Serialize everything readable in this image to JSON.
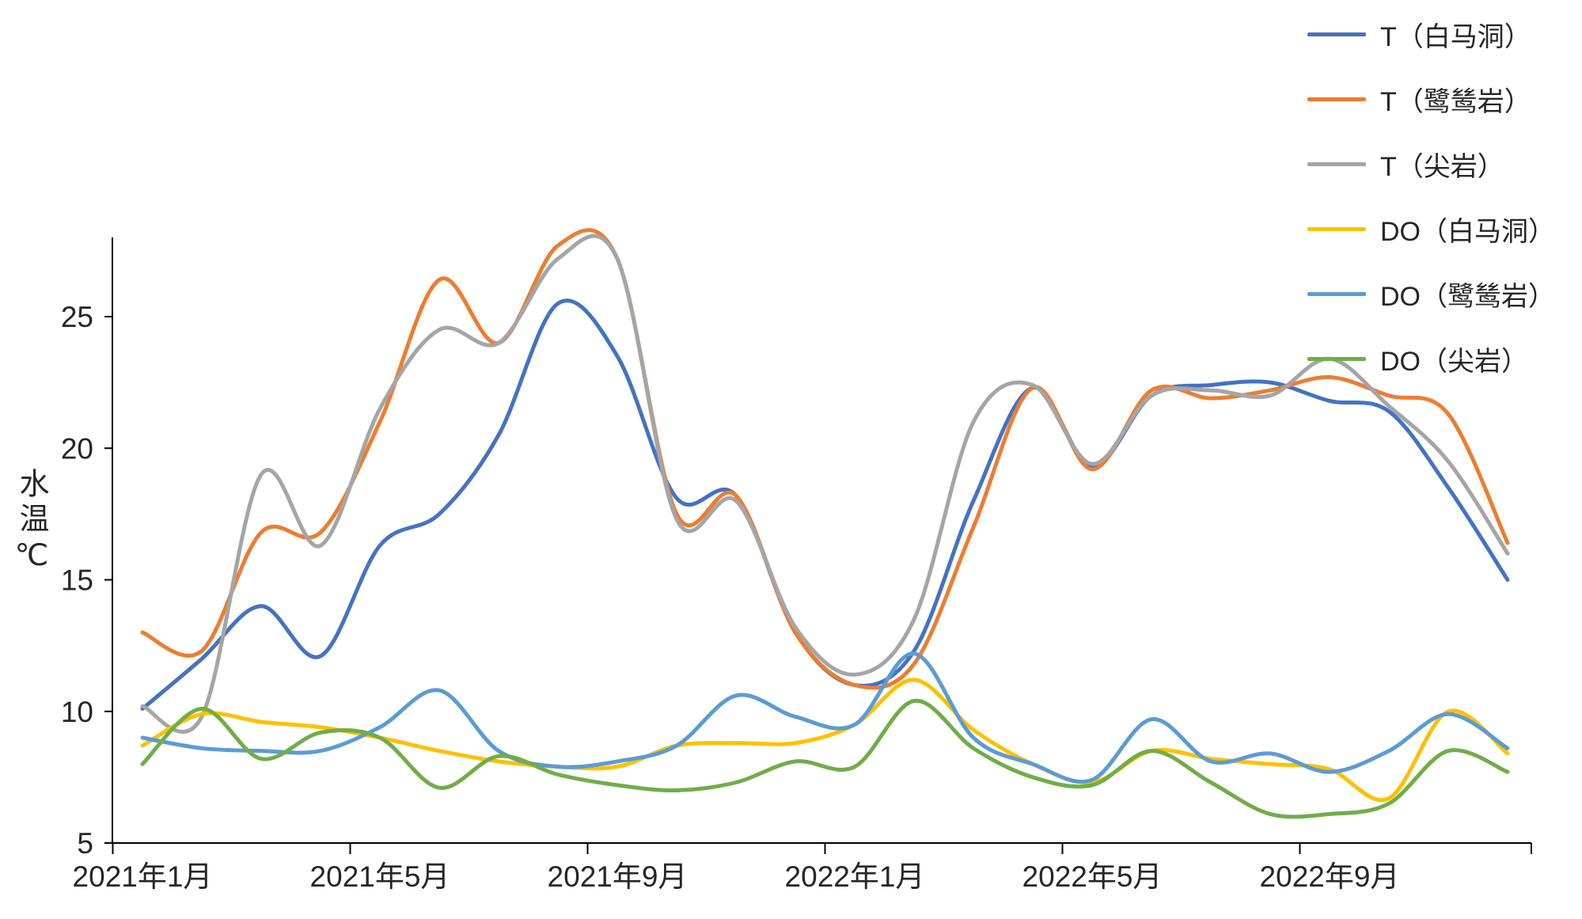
{
  "chart_data": {
    "type": "line",
    "title": "",
    "xlabel": "",
    "ylabel": "水温℃",
    "ylim": [
      5,
      28
    ],
    "yticks": [
      5,
      10,
      15,
      20,
      25
    ],
    "xtick_labels": [
      "2021年1月",
      "2021年5月",
      "2021年9月",
      "2022年1月",
      "2022年5月",
      "2022年9月"
    ],
    "categories": [
      "2021年1月",
      "2021年2月",
      "2021年3月",
      "2021年4月",
      "2021年5月",
      "2021年6月",
      "2021年7月",
      "2021年8月",
      "2021年9月",
      "2021年10月",
      "2021年11月",
      "2021年12月",
      "2022年1月",
      "2022年2月",
      "2022年3月",
      "2022年4月",
      "2022年5月",
      "2022年6月",
      "2022年7月",
      "2022年8月",
      "2022年9月",
      "2022年10月",
      "2022年11月",
      "2022年12月"
    ],
    "grid": false,
    "smooth": true,
    "legend_position": "top-right",
    "axis_color": "#000000",
    "text_color": "#262626",
    "series": [
      {
        "name": "T（白马洞）",
        "color": "#4472C4",
        "values": [
          10.1,
          12.0,
          14.0,
          12.1,
          16.3,
          17.5,
          20.5,
          25.5,
          23.5,
          18.1,
          18.2,
          13.0,
          11.0,
          12.3,
          18.0,
          22.3,
          19.3,
          22.0,
          22.4,
          22.5,
          21.8,
          21.4,
          18.5,
          15.0
        ]
      },
      {
        "name": "T（鹭鸶岩）",
        "color": "#ED7D31",
        "values": [
          13.0,
          12.3,
          16.8,
          16.8,
          21.0,
          26.4,
          24.0,
          27.7,
          27.2,
          17.5,
          18.2,
          13.0,
          11.0,
          11.8,
          17.0,
          22.3,
          19.2,
          22.2,
          21.9,
          22.2,
          22.7,
          22.0,
          21.3,
          16.4
        ]
      },
      {
        "name": "T（尖岩）",
        "color": "#A5A5A5",
        "values": [
          10.2,
          9.8,
          19.0,
          16.3,
          21.5,
          24.5,
          24.0,
          27.2,
          27.2,
          17.3,
          18.0,
          13.2,
          11.4,
          13.5,
          21.0,
          22.4,
          19.4,
          22.0,
          22.2,
          22.0,
          23.4,
          21.6,
          19.5,
          16.0
        ]
      },
      {
        "name": "DO（白马洞）",
        "color": "#FFC000",
        "values": [
          8.7,
          9.9,
          9.6,
          9.4,
          9.0,
          8.5,
          8.1,
          7.9,
          7.9,
          8.7,
          8.8,
          8.8,
          9.5,
          11.2,
          9.3,
          8.0,
          7.3,
          8.5,
          8.2,
          8.0,
          7.8,
          6.7,
          10.0,
          8.4
        ]
      },
      {
        "name": "DO（鹭鸶岩）",
        "color": "#5B9BD5",
        "values": [
          9.0,
          8.6,
          8.5,
          8.5,
          9.4,
          10.8,
          8.5,
          7.9,
          8.1,
          8.7,
          10.6,
          9.8,
          9.5,
          12.2,
          9.0,
          8.0,
          7.4,
          9.7,
          8.1,
          8.4,
          7.7,
          8.5,
          9.9,
          8.6
        ]
      },
      {
        "name": "DO（尖岩）",
        "color": "#70AD47",
        "values": [
          8.0,
          10.1,
          8.2,
          9.2,
          9.0,
          7.1,
          8.3,
          7.6,
          7.2,
          7.0,
          7.3,
          8.1,
          7.9,
          10.4,
          8.6,
          7.5,
          7.2,
          8.5,
          7.3,
          6.1,
          6.1,
          6.5,
          8.5,
          7.7
        ]
      }
    ]
  }
}
